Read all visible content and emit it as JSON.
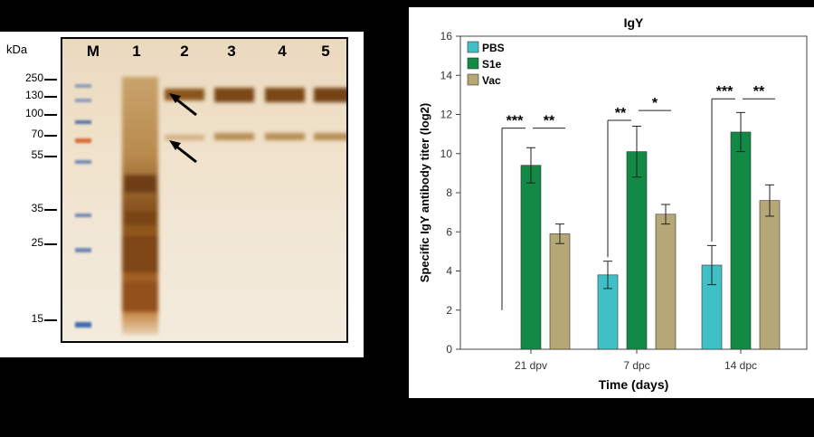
{
  "gel": {
    "kda_unit": "kDa",
    "lanes": [
      "M",
      "1",
      "2",
      "3",
      "4",
      "5"
    ],
    "markers": [
      "250",
      "130",
      "100",
      "70",
      "55",
      "35",
      "25",
      "15"
    ]
  },
  "chart_data": {
    "type": "bar",
    "title": "IgY",
    "xlabel": "Time (days)",
    "ylabel": "Specific IgY antibody titer (log2)",
    "ylim": [
      0,
      16
    ],
    "yticks": [
      "0",
      "2",
      "4",
      "6",
      "8",
      "10",
      "12",
      "14",
      "16"
    ],
    "categories": [
      "21 dpv",
      "7 dpc",
      "14 dpc"
    ],
    "series": [
      {
        "name": "PBS",
        "color": "#3fc0c6",
        "values": [
          null,
          3.8,
          4.3
        ],
        "errors": [
          null,
          0.7,
          1.0
        ]
      },
      {
        "name": "S1e",
        "color": "#128a45",
        "values": [
          9.4,
          10.1,
          11.1
        ],
        "errors": [
          0.9,
          1.3,
          1.0
        ]
      },
      {
        "name": "Vac",
        "color": "#b5a876",
        "values": [
          5.9,
          6.9,
          7.6
        ],
        "errors": [
          0.5,
          0.5,
          0.8
        ]
      }
    ],
    "significance": [
      {
        "category": "21 dpv",
        "pair": "PBS-S1e",
        "label": "***"
      },
      {
        "category": "21 dpv",
        "pair": "S1e-Vac",
        "label": "**"
      },
      {
        "category": "7 dpc",
        "pair": "PBS-S1e",
        "label": "**"
      },
      {
        "category": "7 dpc",
        "pair": "S1e-Vac",
        "label": "*"
      },
      {
        "category": "14 dpc",
        "pair": "PBS-S1e",
        "label": "***"
      },
      {
        "category": "14 dpc",
        "pair": "S1e-Vac",
        "label": "**"
      }
    ],
    "legend": "top-left",
    "grid": false
  }
}
